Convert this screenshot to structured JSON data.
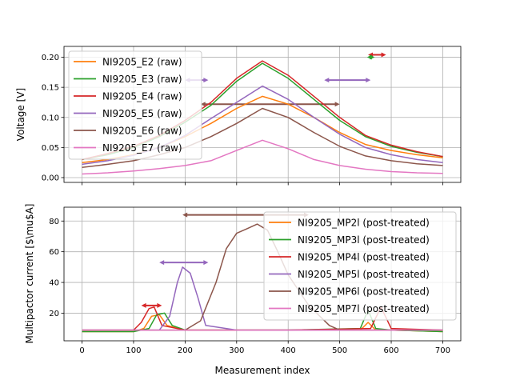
{
  "chart_data": [
    {
      "type": "line",
      "ylabel": "Voltage [V]",
      "xlabel": "",
      "xlim": [
        -35,
        735
      ],
      "ylim": [
        -0.008,
        0.218
      ],
      "xticks": [
        0,
        100,
        200,
        300,
        400,
        500,
        600,
        700
      ],
      "yticks": [
        0.0,
        0.05,
        0.1,
        0.15,
        0.2
      ],
      "ytick_labels": [
        "0.00",
        "0.05",
        "0.10",
        "0.15",
        "0.20"
      ],
      "grid": true,
      "legend_position": "upper left",
      "series": [
        {
          "name": "NI9205_E2 (raw)",
          "color": "#ff7f0e",
          "x": [
            0,
            50,
            100,
            150,
            200,
            250,
            300,
            350,
            400,
            450,
            500,
            550,
            600,
            650,
            700
          ],
          "y": [
            0.025,
            0.03,
            0.038,
            0.05,
            0.068,
            0.09,
            0.115,
            0.135,
            0.122,
            0.1,
            0.075,
            0.055,
            0.045,
            0.038,
            0.033
          ]
        },
        {
          "name": "NI9205_E3 (raw)",
          "color": "#2ca02c",
          "x": [
            0,
            50,
            100,
            150,
            200,
            250,
            300,
            350,
            400,
            450,
            500,
            550,
            600,
            650,
            700
          ],
          "y": [
            0.03,
            0.038,
            0.05,
            0.068,
            0.092,
            0.12,
            0.16,
            0.19,
            0.165,
            0.13,
            0.095,
            0.068,
            0.052,
            0.042,
            0.035
          ]
        },
        {
          "name": "NI9205_E4 (raw)",
          "color": "#d62728",
          "x": [
            0,
            50,
            100,
            150,
            200,
            250,
            300,
            350,
            400,
            450,
            500,
            550,
            600,
            650,
            700
          ],
          "y": [
            0.03,
            0.04,
            0.052,
            0.07,
            0.095,
            0.125,
            0.165,
            0.194,
            0.17,
            0.135,
            0.1,
            0.07,
            0.054,
            0.043,
            0.035
          ]
        },
        {
          "name": "NI9205_E5 (raw)",
          "color": "#9467bd",
          "x": [
            0,
            50,
            100,
            150,
            200,
            250,
            300,
            350,
            400,
            450,
            500,
            550,
            600,
            650,
            700
          ],
          "y": [
            0.022,
            0.028,
            0.037,
            0.05,
            0.07,
            0.098,
            0.125,
            0.152,
            0.13,
            0.1,
            0.072,
            0.05,
            0.038,
            0.03,
            0.025
          ]
        },
        {
          "name": "NI9205_E6 (raw)",
          "color": "#8c564b",
          "x": [
            0,
            50,
            100,
            150,
            200,
            250,
            300,
            350,
            400,
            450,
            500,
            550,
            600,
            650,
            700
          ],
          "y": [
            0.017,
            0.022,
            0.028,
            0.038,
            0.05,
            0.068,
            0.09,
            0.115,
            0.1,
            0.075,
            0.052,
            0.036,
            0.028,
            0.023,
            0.02
          ]
        },
        {
          "name": "NI9205_E7 (raw)",
          "color": "#e377c2",
          "x": [
            0,
            50,
            100,
            150,
            200,
            250,
            300,
            350,
            400,
            450,
            500,
            550,
            600,
            650,
            700
          ],
          "y": [
            0.006,
            0.008,
            0.011,
            0.015,
            0.02,
            0.028,
            0.045,
            0.062,
            0.048,
            0.03,
            0.02,
            0.014,
            0.01,
            0.008,
            0.007
          ]
        }
      ],
      "horizontal_markers": [
        {
          "color": "#8c564b",
          "x": [
            230,
            500
          ],
          "y": 0.122
        },
        {
          "color": "#9467bd",
          "x": [
            470,
            560
          ],
          "y": 0.162
        },
        {
          "color": "#d62728",
          "x": [
            555,
            590
          ],
          "y": 0.204
        },
        {
          "color": "#9467bd",
          "x": [
            200,
            245
          ],
          "y": 0.162
        },
        {
          "color": "#2ca02c",
          "x": [
            553,
            568
          ],
          "y": 0.2
        }
      ]
    },
    {
      "type": "line",
      "ylabel": "Multipactor current [$\\mu$A]",
      "xlabel": "Measurement index",
      "xlim": [
        -35,
        735
      ],
      "ylim": [
        2,
        89
      ],
      "xticks": [
        0,
        100,
        200,
        300,
        400,
        500,
        600,
        700
      ],
      "yticks": [
        20,
        40,
        60,
        80
      ],
      "ytick_labels": [
        "20",
        "40",
        "60",
        "80"
      ],
      "xtick_labels": [
        "0",
        "100",
        "200",
        "300",
        "400",
        "500",
        "600",
        "700"
      ],
      "grid": true,
      "legend_position": "upper right",
      "series": [
        {
          "name": "NI9205_MP2l (post-treated)",
          "color": "#ff7f0e",
          "x": [
            0,
            100,
            120,
            135,
            150,
            165,
            200,
            400,
            540,
            555,
            570,
            600,
            700
          ],
          "y": [
            8,
            8,
            10,
            18,
            19,
            12,
            9,
            9,
            9,
            14,
            9,
            9,
            8
          ]
        },
        {
          "name": "NI9205_MP3l (post-treated)",
          "color": "#2ca02c",
          "x": [
            0,
            100,
            130,
            145,
            160,
            175,
            200,
            400,
            540,
            555,
            570,
            600,
            700
          ],
          "y": [
            8,
            8,
            10,
            19,
            20,
            12,
            9,
            9,
            10,
            22,
            10,
            9,
            8
          ]
        },
        {
          "name": "NI9205_MP4l (post-treated)",
          "color": "#d62728",
          "x": [
            0,
            100,
            115,
            130,
            140,
            155,
            200,
            400,
            560,
            580,
            600,
            700
          ],
          "y": [
            9,
            9,
            14,
            23,
            24,
            12,
            9,
            9,
            10,
            24,
            10,
            9
          ]
        },
        {
          "name": "NI9205_MP5l (post-treated)",
          "color": "#9467bd",
          "x": [
            0,
            150,
            170,
            185,
            195,
            210,
            225,
            240,
            300,
            700
          ],
          "y": [
            9,
            9,
            18,
            40,
            50,
            46,
            30,
            12,
            9,
            9
          ]
        },
        {
          "name": "NI9205_MP6l (post-treated)",
          "color": "#8c564b",
          "x": [
            0,
            200,
            230,
            260,
            280,
            300,
            320,
            340,
            360,
            380,
            400,
            440,
            480,
            500,
            700
          ],
          "y": [
            9,
            9,
            15,
            40,
            62,
            72,
            75,
            78,
            74,
            60,
            45,
            25,
            12,
            9,
            9
          ]
        },
        {
          "name": "NI9205_MP7l (post-treated)",
          "color": "#e377c2",
          "x": [
            0,
            100,
            200,
            300,
            400,
            500,
            600,
            700
          ],
          "y": [
            9,
            9,
            9,
            9,
            9,
            9,
            9,
            9
          ]
        }
      ],
      "horizontal_markers": [
        {
          "color": "#8c564b",
          "x": [
            195,
            440
          ],
          "y": 84
        },
        {
          "color": "#9467bd",
          "x": [
            150,
            245
          ],
          "y": 53
        },
        {
          "color": "#d62728",
          "x": [
            115,
            155
          ],
          "y": 25
        }
      ]
    }
  ]
}
